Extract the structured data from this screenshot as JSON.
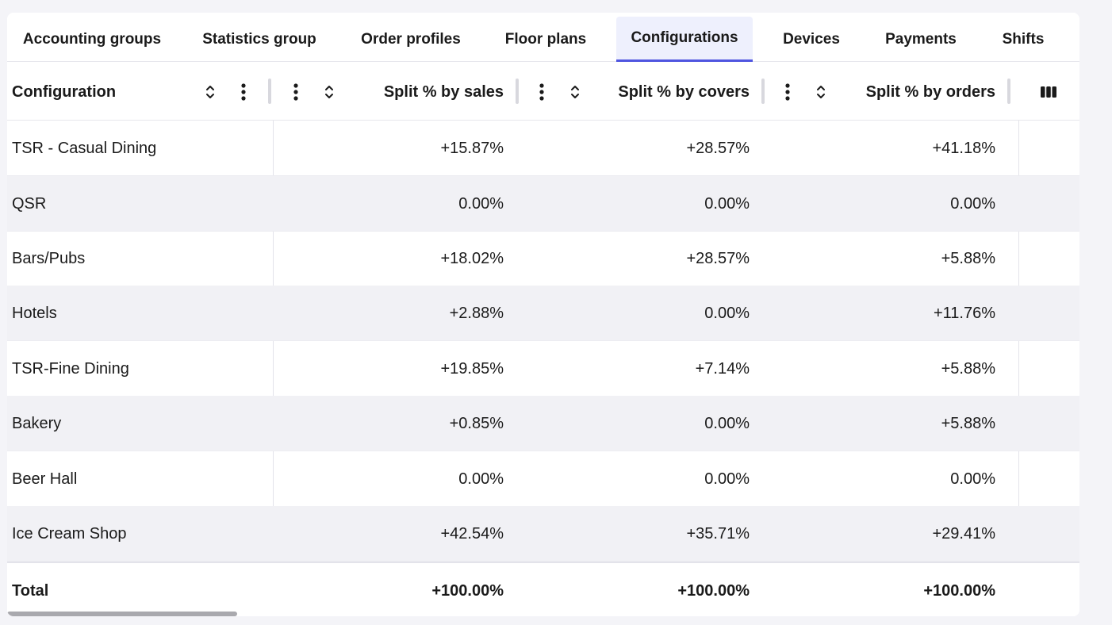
{
  "tabs": [
    {
      "label": "Accounting groups",
      "active": false
    },
    {
      "label": "Statistics group",
      "active": false
    },
    {
      "label": "Order profiles",
      "active": false
    },
    {
      "label": "Floor plans",
      "active": false
    },
    {
      "label": "Configurations",
      "active": true
    },
    {
      "label": "Devices",
      "active": false
    },
    {
      "label": "Payments",
      "active": false
    },
    {
      "label": "Shifts",
      "active": false
    }
  ],
  "table": {
    "columns": {
      "configuration": "Configuration",
      "sales": "Split % by sales",
      "covers": "Split % by covers",
      "orders": "Split % by orders"
    },
    "icons": {
      "sort": "sort-arrows-icon",
      "menu": "vertical-dots-icon",
      "columns": "columns-icon"
    },
    "rows": [
      {
        "name": "TSR - Casual Dining",
        "sales": "+15.87%",
        "covers": "+28.57%",
        "orders": "+41.18%"
      },
      {
        "name": "QSR",
        "sales": "0.00%",
        "covers": "0.00%",
        "orders": "0.00%"
      },
      {
        "name": "Bars/Pubs",
        "sales": "+18.02%",
        "covers": "+28.57%",
        "orders": "+5.88%"
      },
      {
        "name": "Hotels",
        "sales": "+2.88%",
        "covers": "0.00%",
        "orders": "+11.76%"
      },
      {
        "name": "TSR-Fine Dining",
        "sales": "+19.85%",
        "covers": "+7.14%",
        "orders": "+5.88%"
      },
      {
        "name": "Bakery",
        "sales": "+0.85%",
        "covers": "0.00%",
        "orders": "+5.88%"
      },
      {
        "name": "Beer Hall",
        "sales": "0.00%",
        "covers": "0.00%",
        "orders": "0.00%"
      },
      {
        "name": "Ice Cream Shop",
        "sales": "+42.54%",
        "covers": "+35.71%",
        "orders": "+29.41%"
      }
    ],
    "total": {
      "name": "Total",
      "sales": "+100.00%",
      "covers": "+100.00%",
      "orders": "+100.00%"
    }
  },
  "colors": {
    "accent": "#4f55e0",
    "active_tab_bg": "#eef0fd",
    "alt_row": "#f1f1f5",
    "page_bg": "#f4f4f8"
  }
}
